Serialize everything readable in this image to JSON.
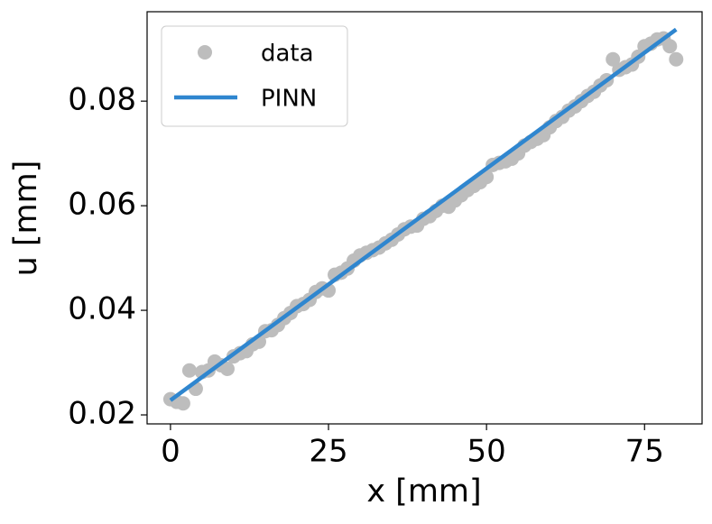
{
  "chart_data": {
    "type": "scatter",
    "xlabel": "x [mm]",
    "ylabel": "u [mm]",
    "xlim": [
      -3.7,
      84.1
    ],
    "ylim": [
      0.01828,
      0.0971
    ],
    "xticks": [
      0,
      25,
      50,
      75
    ],
    "yticks": [
      0.02,
      0.04,
      0.06,
      0.08
    ],
    "legend": "upper left",
    "series": [
      {
        "name": "data",
        "color": "#bdbdbd",
        "style": "markers",
        "x": [
          0,
          1,
          2,
          3,
          4,
          5,
          6,
          7,
          8,
          9,
          10,
          11,
          12,
          13,
          14,
          15,
          16,
          17,
          18,
          19,
          20,
          21,
          22,
          23,
          24,
          25,
          26,
          27,
          28,
          29,
          30,
          31,
          32,
          33,
          34,
          35,
          36,
          37,
          38,
          39,
          40,
          41,
          42,
          43,
          44,
          45,
          46,
          47,
          48,
          49,
          50,
          51,
          52,
          53,
          54,
          55,
          56,
          57,
          58,
          59,
          60,
          61,
          62,
          63,
          64,
          65,
          66,
          67,
          68,
          69,
          70,
          71,
          72,
          73,
          74,
          75,
          76,
          77,
          78,
          79,
          80
        ],
        "values": [
          0.023,
          0.0225,
          0.0222,
          0.0285,
          0.025,
          0.0282,
          0.0285,
          0.0302,
          0.0295,
          0.0288,
          0.0312,
          0.0318,
          0.0322,
          0.0335,
          0.034,
          0.036,
          0.0362,
          0.0372,
          0.0385,
          0.0395,
          0.0408,
          0.0412,
          0.042,
          0.0435,
          0.0442,
          0.0438,
          0.0468,
          0.0472,
          0.048,
          0.0495,
          0.0505,
          0.051,
          0.0515,
          0.052,
          0.0528,
          0.0535,
          0.0545,
          0.0555,
          0.056,
          0.0562,
          0.0575,
          0.058,
          0.059,
          0.06,
          0.0598,
          0.061,
          0.062,
          0.063,
          0.0638,
          0.0645,
          0.0655,
          0.0678,
          0.0682,
          0.0685,
          0.069,
          0.07,
          0.0715,
          0.0722,
          0.0728,
          0.0735,
          0.075,
          0.0762,
          0.077,
          0.0782,
          0.079,
          0.08,
          0.081,
          0.0818,
          0.083,
          0.084,
          0.088,
          0.086,
          0.0865,
          0.087,
          0.0885,
          0.0905,
          0.091,
          0.0918,
          0.092,
          0.0905,
          0.088
        ]
      },
      {
        "name": "PINN",
        "color": "#2f86cf",
        "style": "line",
        "x": [
          0,
          80
        ],
        "values": [
          0.0228,
          0.0937
        ]
      }
    ]
  }
}
